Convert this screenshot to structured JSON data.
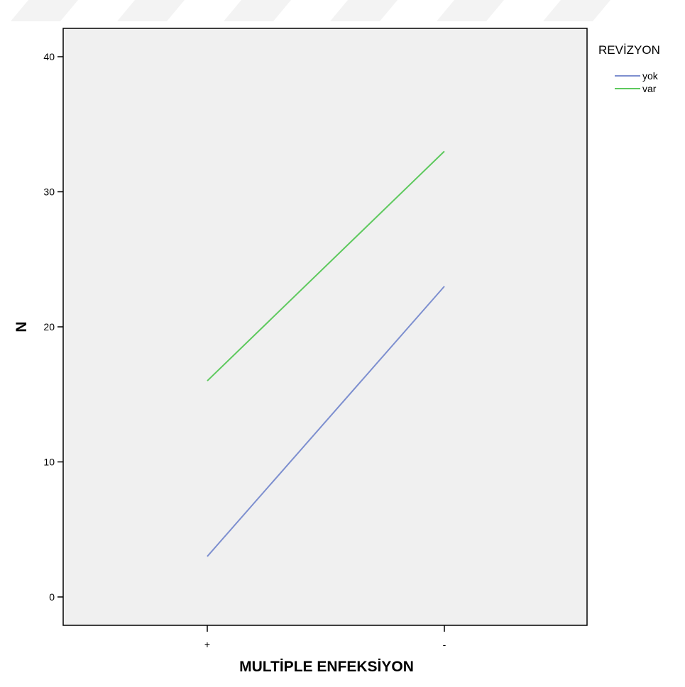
{
  "chart_data": {
    "type": "line",
    "title": "",
    "xlabel": "MULTİPLE ENFEKSİYON",
    "ylabel": "N",
    "categories": [
      "+",
      "-"
    ],
    "series": [
      {
        "name": "yok",
        "values": [
          3,
          23
        ],
        "color": "#7d8fcf"
      },
      {
        "name": "var",
        "values": [
          16,
          33
        ],
        "color": "#5ec95e"
      }
    ],
    "ylim": [
      -2.1,
      42.1
    ],
    "yticks": [
      "0",
      "10",
      "20",
      "30",
      "40"
    ],
    "grid": false,
    "plot_background": "#f0f0f0",
    "legend": {
      "title": "REVİZYON",
      "position": "top-right"
    }
  }
}
